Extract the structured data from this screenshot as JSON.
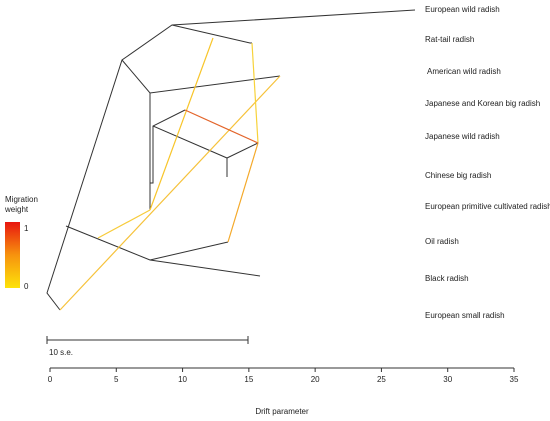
{
  "chart_data": {
    "type": "treemix",
    "leaves": [
      "European wild radish",
      "Rat-tail radish",
      "American wild radish",
      "Japanese and Korean big radish",
      "Japanese wild radish",
      "Chinese big radish",
      "European primitive cultivated radish",
      "Oil radish",
      "Black radish",
      "European small radish"
    ],
    "xlabel": "Drift parameter",
    "xlim": [
      0,
      35
    ],
    "xticks": [
      0,
      5,
      10,
      15,
      20,
      25,
      30,
      35
    ],
    "legend_title": [
      "Migration",
      "weight"
    ],
    "legend_ticks": [
      0,
      1
    ],
    "scale_bar_label": "10 s.e."
  }
}
